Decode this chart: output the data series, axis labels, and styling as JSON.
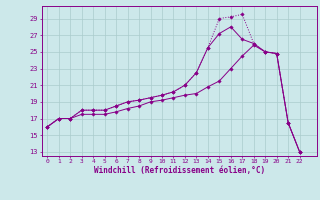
{
  "xlabel": "Windchill (Refroidissement éolien,°C)",
  "bg_color": "#cce8ea",
  "grid_color": "#aacccc",
  "line_color": "#880088",
  "x": [
    0,
    1,
    2,
    3,
    4,
    5,
    6,
    7,
    8,
    9,
    10,
    11,
    12,
    13,
    14,
    15,
    16,
    17,
    18,
    19,
    20,
    21,
    22
  ],
  "line1_y": [
    16.0,
    17.0,
    17.0,
    18.0,
    18.0,
    18.0,
    18.5,
    19.0,
    19.2,
    19.5,
    19.8,
    20.2,
    21.0,
    22.5,
    25.5,
    29.0,
    29.2,
    29.5,
    26.0,
    25.0,
    24.8,
    16.5,
    13.0
  ],
  "line2_y": [
    16.0,
    17.0,
    17.0,
    18.0,
    18.0,
    18.0,
    18.5,
    19.0,
    19.2,
    19.5,
    19.8,
    20.2,
    21.0,
    22.5,
    25.5,
    27.2,
    28.0,
    26.5,
    26.0,
    25.0,
    24.8,
    16.5,
    13.0
  ],
  "line3_y": [
    16.0,
    17.0,
    17.0,
    17.5,
    17.5,
    17.5,
    17.8,
    18.2,
    18.5,
    19.0,
    19.2,
    19.5,
    19.8,
    20.0,
    20.8,
    21.5,
    23.0,
    24.5,
    25.8,
    25.0,
    24.8,
    16.5,
    13.0
  ],
  "yticks": [
    13,
    15,
    17,
    19,
    21,
    23,
    25,
    27,
    29
  ],
  "ylim": [
    12.5,
    30.5
  ],
  "xlim": [
    -0.5,
    23.5
  ]
}
